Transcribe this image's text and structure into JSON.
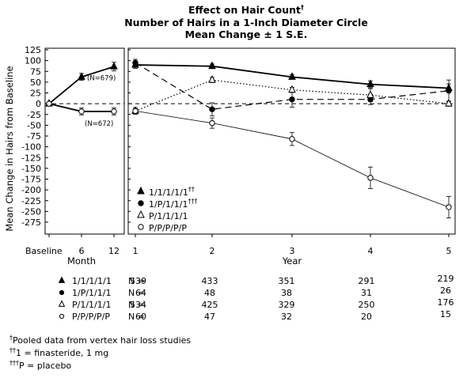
{
  "chart_data": {
    "type": "line",
    "title": "Effect on Hair Count",
    "title_mark": "†",
    "subtitle_lines": [
      "Number of Hairs in a 1-Inch Diameter Circle",
      "Mean Change ± 1 S.E."
    ],
    "ylabel": "Mean Change in Hairs from Baseline",
    "ylim": [
      -285,
      125
    ],
    "yticks": [
      125,
      100,
      75,
      50,
      25,
      0,
      -25,
      -50,
      -75,
      -100,
      -125,
      -150,
      -175,
      -200,
      -225,
      -250,
      -275
    ],
    "grid": false,
    "reference_line": {
      "y": 0,
      "style": "dashed"
    },
    "panels": [
      {
        "name": "month",
        "xlabel": "Month",
        "x_ticks": [
          "Baseline",
          "6",
          "12"
        ],
        "series": [
          {
            "name": "finasteride",
            "marker": "triangle-filled",
            "values": [
              0,
              62,
              86
            ],
            "errors": [
              0,
              8,
              10
            ],
            "line": "solid"
          },
          {
            "name": "placebo",
            "marker": "circle-open",
            "values": [
              0,
              -18,
              -18
            ],
            "errors": [
              0,
              8,
              8
            ],
            "line": "solid"
          }
        ],
        "annotations": [
          {
            "text": "(N=679)",
            "x": "6",
            "y": 62
          },
          {
            "text": "(N=672)",
            "x": "6",
            "y": -18
          }
        ]
      },
      {
        "name": "year",
        "xlabel": "Year",
        "x_ticks": [
          "1",
          "2",
          "3",
          "4",
          "5"
        ],
        "series": [
          {
            "label": "1/1/1/1/1",
            "label_sup": "††",
            "marker": "triangle-filled",
            "line": "solid",
            "values": [
              90,
              87,
              62,
              45,
              36
            ],
            "errors": [
              8,
              5,
              5,
              8,
              10
            ]
          },
          {
            "label": "1/P/1/1/1",
            "label_sup": "†††",
            "marker": "circle-filled",
            "line": "dashed",
            "values": [
              95,
              -13,
              10,
              10,
              30
            ],
            "errors": [
              8,
              15,
              18,
              12,
              25
            ]
          },
          {
            "label": "P/1/1/1/1",
            "label_sup": "",
            "marker": "triangle-open",
            "line": "dotted",
            "values": [
              -17,
              55,
              32,
              20,
              0
            ],
            "errors": [
              5,
              6,
              6,
              15,
              6
            ]
          },
          {
            "label": "P/P/P/P/P",
            "label_sup": "",
            "marker": "circle-open",
            "line": "solid-thin",
            "values": [
              -17,
              -45,
              -82,
              -172,
              -240
            ],
            "errors": [
              8,
              12,
              15,
              25,
              25
            ]
          }
        ]
      }
    ],
    "n_table": {
      "rows": [
        {
          "marker": "triangle-filled",
          "label": "1/1/1/1/1",
          "prefix": "N =",
          "values": [
            "539",
            "433",
            "351",
            "291",
            "219"
          ]
        },
        {
          "marker": "circle-filled",
          "label": "1/P/1/1/1",
          "prefix": "N =",
          "values": [
            "64",
            "48",
            "38",
            "31",
            "26"
          ]
        },
        {
          "marker": "triangle-open",
          "label": "P/1/1/1/1",
          "prefix": "N =",
          "values": [
            "534",
            "425",
            "329",
            "250",
            "176"
          ]
        },
        {
          "marker": "circle-open",
          "label": "P/P/P/P/P",
          "prefix": "N =",
          "values": [
            "60",
            "47",
            "32",
            "20",
            "15"
          ]
        }
      ]
    }
  },
  "footnotes": [
    {
      "mark": "†",
      "text": "Pooled data from vertex hair loss studies"
    },
    {
      "mark": "††",
      "text": "1 = finasteride, 1 mg"
    },
    {
      "mark": "†††",
      "text": "P = placebo"
    }
  ]
}
